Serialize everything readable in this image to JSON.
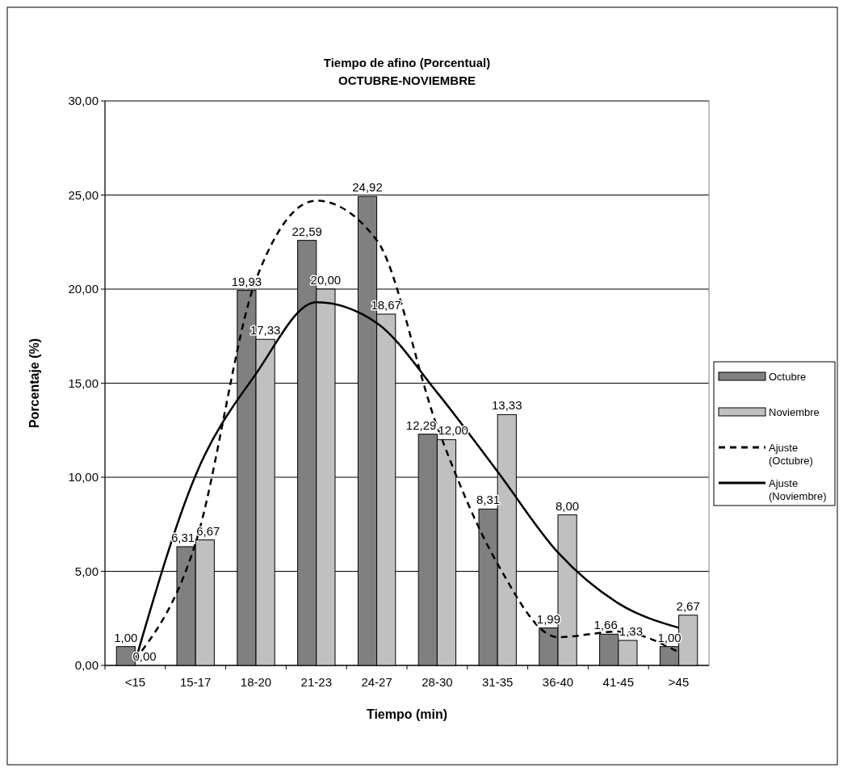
{
  "chart_data": {
    "type": "bar",
    "title": "Tiempo de afino (Porcentual)",
    "subtitle": "OCTUBRE-NOVIEMBRE",
    "xlabel": "Tiempo (min)",
    "ylabel": "Porcentaje (%)",
    "categories": [
      "<15",
      "15-17",
      "18-20",
      "21-23",
      "24-27",
      "28-30",
      "31-35",
      "36-40",
      "41-45",
      ">45"
    ],
    "series": [
      {
        "name": "Octubre",
        "color": "#808080",
        "values": [
          1,
          6.31,
          19.93,
          22.59,
          24.92,
          12.29,
          8.31,
          1.99,
          1.66,
          1
        ],
        "value_labels": [
          "1,00",
          "6,31",
          "19,93",
          "22,59",
          "24,92",
          "12,29",
          "8,31",
          "1,99",
          "1,66",
          "1,00"
        ]
      },
      {
        "name": "Noviembre",
        "color": "#c0c0c0",
        "values": [
          0,
          6.67,
          17.33,
          20,
          18.67,
          12,
          13.33,
          8,
          1.33,
          2.67
        ],
        "value_labels": [
          "0,00",
          "6,67",
          "17,33",
          "20,00",
          "18,67",
          "12,00",
          "13,33",
          "8,00",
          "1,33",
          "2,67"
        ]
      },
      {
        "name": "Ajuste (Octubre)",
        "type": "line",
        "color": "#000000",
        "line_style": "dashed",
        "values": [
          0.3,
          6.5,
          20.5,
          24.7,
          22.6,
          12.7,
          5.4,
          1.5,
          1.8,
          0.7
        ]
      },
      {
        "name": "Ajuste (Noviembre)",
        "type": "line",
        "color": "#000000",
        "line_style": "solid",
        "values": [
          0.2,
          10.1,
          15.5,
          19.3,
          18.2,
          14.5,
          10.3,
          6,
          3.3,
          2
        ]
      }
    ],
    "ylim": [
      0,
      30
    ],
    "yticks": [
      {
        "value": 0,
        "label": "0,00"
      },
      {
        "value": 5,
        "label": "5,00"
      },
      {
        "value": 10,
        "label": "10,00"
      },
      {
        "value": 15,
        "label": "15,00"
      },
      {
        "value": 20,
        "label": "20,00"
      },
      {
        "value": 25,
        "label": "25,00"
      },
      {
        "value": 30,
        "label": "30,00"
      }
    ],
    "grid": "y",
    "legend": "right",
    "marker": "none"
  }
}
